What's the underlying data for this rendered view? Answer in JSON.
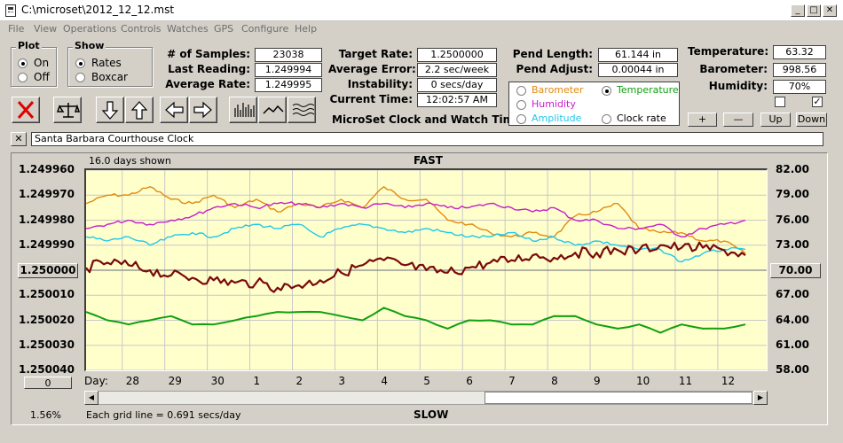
{
  "window": {
    "title": "C:\\microset\\2012_12_12.mst",
    "min": "_",
    "max": "□",
    "close": "✕"
  },
  "menu": [
    "File",
    "View",
    "Operations",
    "Controls",
    "Watches",
    "GPS",
    "Configure",
    "Help"
  ],
  "plot_group": {
    "legend": "Plot",
    "on": "On",
    "off": "Off",
    "selected": "On"
  },
  "show_group": {
    "legend": "Show",
    "rates": "Rates",
    "boxcar": "Boxcar",
    "selected": "Rates"
  },
  "stats": {
    "samples_label": "# of Samples:",
    "samples": "23038",
    "last_label": "Last Reading:",
    "last": "1.249994",
    "avg_label": "Average Rate:",
    "avg": "1.249995"
  },
  "rates": {
    "target_label": "Target Rate:",
    "target": "1.2500000",
    "error_label": "Average Error:",
    "error": "2.2 sec/week",
    "instab_label": "Instability:",
    "instab": "0 secs/day",
    "time_label": "Current Time:",
    "time": "12:02:57 AM"
  },
  "app_caption": "MicroSet Clock and Watch Timer",
  "pend": {
    "length_label": "Pend Length:",
    "length": "61.144 in",
    "adjust_label": "Pend Adjust:",
    "adjust": "0.00044 in"
  },
  "aux": {
    "barometer": "Barometer",
    "humidity": "Humidity",
    "amplitude": "Amplitude",
    "temperature": "Temperature",
    "clockrate": "Clock rate",
    "selected": "Temperature",
    "colors": {
      "barometer": "#e08a10",
      "humidity": "#c81ec8",
      "amplitude": "#20c8e8",
      "temperature": "#10a010",
      "clockrate": "#000000"
    }
  },
  "env": {
    "temp_label": "Temperature:",
    "temp": "63.32",
    "baro_label": "Barometer:",
    "baro": "998.56",
    "hum_label": "Humidity:",
    "hum": "70%",
    "check1": "",
    "check2": "✓"
  },
  "scale_buttons": {
    "plus": "+",
    "minus": "—",
    "up": "Up",
    "down": "Down"
  },
  "watch": {
    "close": "✕",
    "name": "Santa Barbara Courthouse Clock"
  },
  "chart_header": {
    "days_shown": "16.0 days shown",
    "top": "FAST",
    "bottom": "SLOW",
    "grid_note": "Each grid line = 0.691 secs/day",
    "percent": "1.56%"
  },
  "left_button": "1.250000",
  "right_button": "70.00",
  "zero_button": "0",
  "day_label": "Day:",
  "chart_data": {
    "type": "line",
    "x_label": "Day:",
    "x_ticks": [
      "28",
      "29",
      "30",
      "1",
      "2",
      "3",
      "4",
      "5",
      "6",
      "7",
      "8",
      "9",
      "10",
      "11",
      "12"
    ],
    "x_tick_positions_days": [
      0.85,
      1.85,
      2.85,
      3.85,
      4.85,
      5.85,
      6.85,
      7.85,
      8.85,
      9.85,
      10.85,
      11.85,
      12.85,
      13.85,
      14.85
    ],
    "x_range_days": [
      0,
      16
    ],
    "y_left_ticks": [
      "1.249960",
      "1.249970",
      "1.249980",
      "1.249990",
      "1.250000",
      "1.250010",
      "1.250020",
      "1.250030",
      "1.250040"
    ],
    "y_left_range": [
      1.24996,
      1.25004
    ],
    "y_right_ticks": [
      "82.00",
      "79.00",
      "76.00",
      "73.00",
      "70.00",
      "67.00",
      "64.00",
      "61.00",
      "58.00"
    ],
    "y_right_range": [
      82,
      58
    ],
    "grid": true,
    "series": [
      {
        "key": "barometer",
        "color": "#e08a10",
        "axis": "right",
        "x": [
          0,
          0.5,
          1,
          1.5,
          2,
          2.5,
          3,
          3.5,
          4,
          4.5,
          5,
          5.5,
          6,
          6.5,
          7,
          7.5,
          8,
          8.5,
          9,
          9.5,
          10,
          10.5,
          11,
          11.5,
          12,
          12.5,
          13,
          13.5,
          14,
          14.5,
          15,
          15.5
        ],
        "y": [
          78.0,
          79.0,
          79.0,
          80.0,
          78.5,
          78.0,
          79.0,
          77.5,
          78.5,
          77.0,
          78.0,
          77.5,
          78.5,
          77.5,
          80.0,
          78.5,
          78.5,
          76.0,
          75.5,
          74.5,
          74.0,
          74.5,
          74.0,
          76.5,
          77.0,
          78.0,
          75.0,
          74.5,
          74.5,
          73.5,
          73.5,
          72.0
        ]
      },
      {
        "key": "humidity",
        "color": "#c81ec8",
        "axis": "right",
        "x": [
          0,
          0.5,
          1,
          1.5,
          2,
          2.5,
          3,
          3.5,
          4,
          4.5,
          5,
          5.5,
          6,
          6.5,
          7,
          7.5,
          8,
          8.5,
          9,
          9.5,
          10,
          10.5,
          11,
          11.5,
          12,
          12.5,
          13,
          13.5,
          14,
          14.5,
          15,
          15.5
        ],
        "y": [
          75.0,
          75.5,
          76.0,
          75.5,
          76.0,
          76.5,
          77.5,
          78.0,
          77.5,
          78.0,
          78.0,
          77.5,
          78.0,
          77.5,
          78.0,
          77.5,
          78.0,
          77.5,
          77.5,
          78.0,
          77.5,
          77.0,
          77.5,
          76.0,
          76.0,
          75.0,
          75.0,
          75.5,
          74.0,
          75.0,
          75.5,
          76.0
        ]
      },
      {
        "key": "amplitude",
        "color": "#20c8e8",
        "axis": "right",
        "x": [
          0,
          0.5,
          1,
          1.5,
          2,
          2.5,
          3,
          3.5,
          4,
          4.5,
          5,
          5.5,
          6,
          6.5,
          7,
          7.5,
          8,
          8.5,
          9,
          9.5,
          10,
          10.5,
          11,
          11.5,
          12,
          12.5,
          13,
          13.5,
          14,
          14.5,
          15,
          15.5
        ],
        "y": [
          74.0,
          73.5,
          74.0,
          73.0,
          74.0,
          74.5,
          74.0,
          75.0,
          75.5,
          75.0,
          75.5,
          74.0,
          75.0,
          75.5,
          75.0,
          74.5,
          75.0,
          74.5,
          74.0,
          74.0,
          74.5,
          73.5,
          74.0,
          73.0,
          73.5,
          73.0,
          72.5,
          72.5,
          71.0,
          72.0,
          72.5,
          72.5
        ]
      },
      {
        "key": "clockrate",
        "color": "#7a0a0a",
        "axis": "left",
        "x": [
          0,
          0.5,
          1,
          1.5,
          2,
          2.5,
          3,
          3.5,
          4,
          4.5,
          5,
          5.5,
          6,
          6.5,
          7,
          7.5,
          8,
          8.5,
          9,
          9.5,
          10,
          10.5,
          11,
          11.5,
          12,
          12.5,
          13,
          13.5,
          14,
          14.5,
          15,
          15.5
        ],
        "y": [
          1.249999,
          1.249997,
          1.249998,
          1.25,
          1.250002,
          1.250003,
          1.250004,
          1.250005,
          1.250005,
          1.250007,
          1.250006,
          1.250004,
          1.250001,
          1.249998,
          1.249996,
          1.249998,
          1.25,
          1.250001,
          1.249999,
          1.249997,
          1.249996,
          1.249994,
          1.249995,
          1.249993,
          1.249993,
          1.249992,
          1.249992,
          1.24999,
          1.249991,
          1.249991,
          1.249992,
          1.249994
        ]
      },
      {
        "key": "temperature",
        "color": "#10a010",
        "axis": "right",
        "x": [
          0,
          0.5,
          1,
          1.5,
          2,
          2.5,
          3,
          3.5,
          4,
          4.5,
          5,
          5.5,
          6,
          6.5,
          7,
          7.5,
          8,
          8.5,
          9,
          9.5,
          10,
          10.5,
          11,
          11.5,
          12,
          12.5,
          13,
          13.5,
          14,
          14.5,
          15,
          15.5
        ],
        "y": [
          65.0,
          64.0,
          63.5,
          64.0,
          64.5,
          63.5,
          63.5,
          64.0,
          64.5,
          65.0,
          65.0,
          65.0,
          64.5,
          64.0,
          65.5,
          64.5,
          64.0,
          63.0,
          64.0,
          64.0,
          63.5,
          63.5,
          64.5,
          64.5,
          63.5,
          63.0,
          63.5,
          62.5,
          63.5,
          63.0,
          63.0,
          63.5
        ]
      }
    ]
  }
}
